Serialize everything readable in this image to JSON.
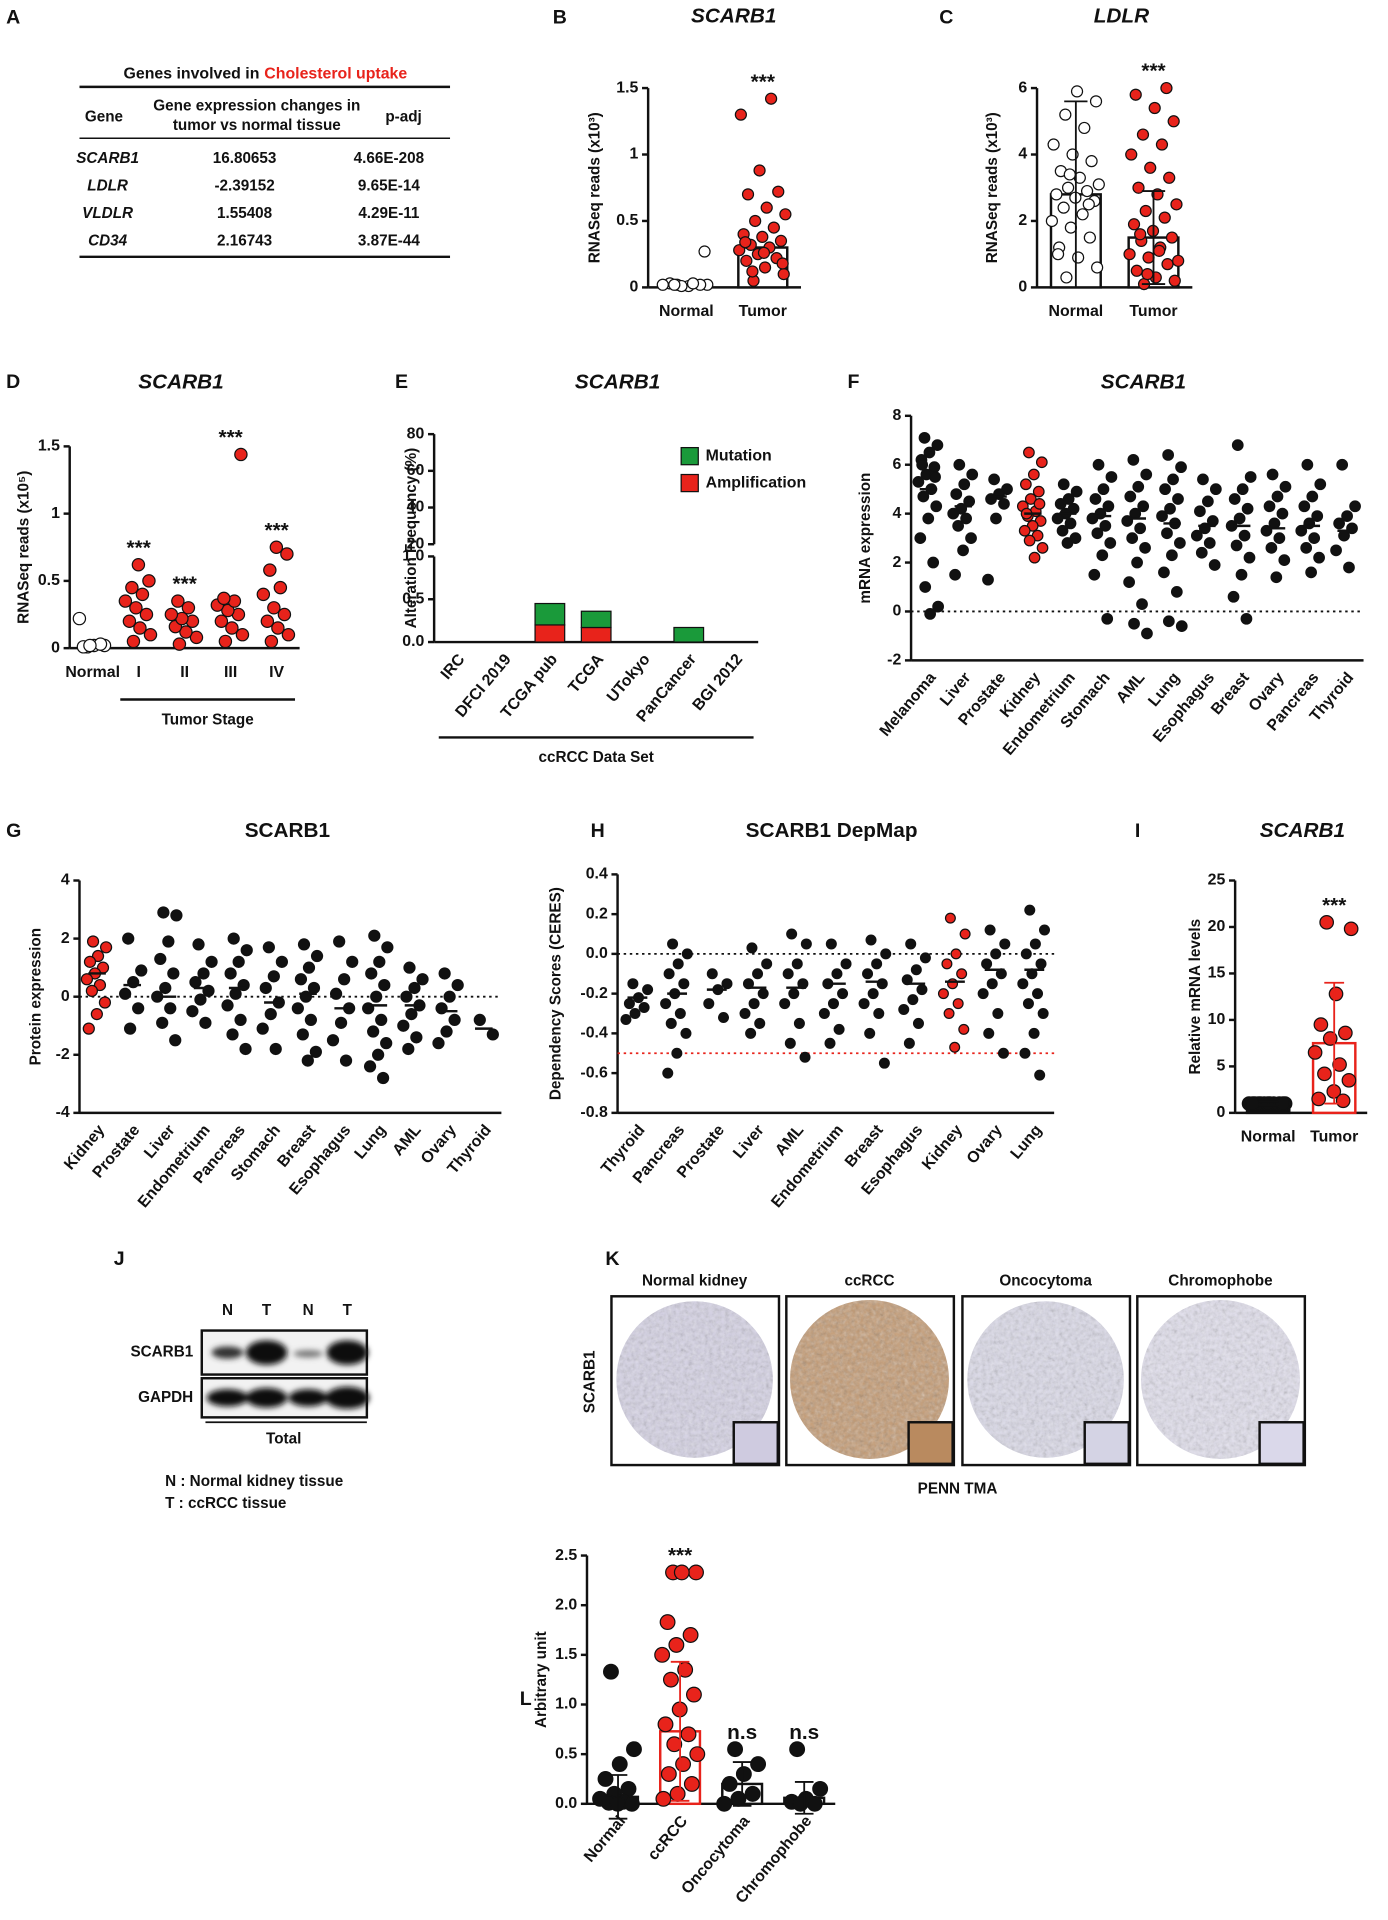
{
  "table": {
    "panel": "A",
    "title": "Genes involved in",
    "title_highlight": "Cholesterol uptake",
    "highlight_color": "#e8231b",
    "columns": [
      "Gene",
      [
        "Gene expression changes in",
        "tumor vs normal tissue"
      ],
      "p-adj"
    ],
    "rows": [
      [
        "SCARB1",
        "16.80653",
        "4.66E-208"
      ],
      [
        "LDLR",
        "-2.39152",
        "9.65E-14"
      ],
      [
        "VLDLR",
        "1.55408",
        "4.29E-11"
      ],
      [
        "CD34",
        "2.16743",
        "3.87E-44"
      ]
    ],
    "row_colors": [
      "#e8231b",
      "#111111",
      "#111111",
      "#111111"
    ]
  },
  "chart_data": [
    {
      "type": "dotplot",
      "panel": "B",
      "title": "SCARB1",
      "title_italic": true,
      "ylabel": "RNASeq reads (x10³)",
      "ylim": [
        0,
        1.5
      ],
      "yticks": [
        0,
        0.5,
        1,
        1.5
      ],
      "categories": [
        "Normal",
        "Tumor"
      ],
      "point_colors": [
        "#ffffff",
        "#e8231b"
      ],
      "bar": true,
      "bar_colors": [
        "#ffffff",
        "#ffffff"
      ],
      "bar_edge": [
        "#111111",
        "#111111"
      ],
      "means": [
        0.02,
        0.3
      ],
      "points": [
        [
          0.02,
          0.02,
          0.01,
          0.03,
          0.02,
          0.01,
          0.02,
          0.03,
          0.02,
          0.27
        ],
        [
          0.05,
          0.1,
          0.15,
          0.2,
          0.22,
          0.25,
          0.28,
          0.3,
          0.32,
          0.35,
          0.38,
          0.4,
          0.45,
          0.5,
          0.55,
          0.6,
          0.7,
          0.72,
          0.88,
          1.3,
          1.42,
          0.12,
          0.18,
          0.26,
          0.34
        ]
      ],
      "stars": [
        null,
        "***"
      ]
    },
    {
      "type": "dotplot",
      "panel": "C",
      "title": "LDLR",
      "title_italic": true,
      "ylabel": "RNASeq reads (x10³)",
      "ylim": [
        0,
        6
      ],
      "yticks": [
        0,
        2,
        4,
        6
      ],
      "categories": [
        "Normal",
        "Tumor"
      ],
      "point_colors": [
        "#ffffff",
        "#e8231b"
      ],
      "bar": true,
      "bar_colors": [
        "#ffffff",
        "#ffffff"
      ],
      "bar_edge": [
        "#111111",
        "#111111"
      ],
      "means": [
        2.8,
        1.5
      ],
      "sd": [
        2.8,
        1.4
      ],
      "points": [
        [
          0.3,
          0.6,
          0.9,
          1.2,
          1.5,
          1.8,
          2.0,
          2.2,
          2.4,
          2.6,
          2.7,
          2.8,
          2.9,
          3.0,
          3.1,
          3.3,
          3.5,
          3.8,
          4.0,
          4.3,
          4.8,
          5.2,
          5.6,
          5.9,
          1.0,
          2.5,
          3.4
        ],
        [
          0.1,
          0.2,
          0.3,
          0.5,
          0.7,
          0.9,
          1.0,
          1.2,
          1.4,
          1.5,
          1.7,
          1.9,
          2.1,
          2.3,
          2.5,
          2.8,
          3.0,
          3.3,
          3.6,
          4.0,
          4.3,
          4.6,
          5.0,
          5.4,
          5.8,
          6.0,
          0.4,
          0.8,
          1.1,
          1.6
        ]
      ],
      "stars": [
        null,
        "***"
      ]
    },
    {
      "type": "dotplot",
      "panel": "D",
      "title": "SCARB1",
      "title_italic": true,
      "ylabel": "RNASeq reads (x10⁵)",
      "xlabel": "Tumor Stage",
      "ylim": [
        0,
        1.5
      ],
      "yticks": [
        0,
        0.5,
        1,
        1.5
      ],
      "categories": [
        "Normal",
        "I",
        "II",
        "III",
        "IV"
      ],
      "point_colors": [
        "#ffffff",
        "#e8231b",
        "#e8231b",
        "#e8231b",
        "#e8231b"
      ],
      "points": [
        [
          0.01,
          0.02,
          0.02,
          0.01,
          0.03,
          0.02,
          0.22
        ],
        [
          0.05,
          0.1,
          0.15,
          0.2,
          0.25,
          0.3,
          0.35,
          0.4,
          0.45,
          0.5,
          0.62
        ],
        [
          0.03,
          0.08,
          0.12,
          0.16,
          0.2,
          0.22,
          0.25,
          0.3,
          0.35
        ],
        [
          0.05,
          0.1,
          0.15,
          0.2,
          0.25,
          0.28,
          0.32,
          0.35,
          0.37,
          1.44
        ],
        [
          0.05,
          0.1,
          0.15,
          0.2,
          0.25,
          0.3,
          0.4,
          0.45,
          0.58,
          0.7,
          0.75
        ]
      ],
      "stars": [
        null,
        "***",
        "***",
        "***",
        "***"
      ]
    },
    {
      "type": "broken_bar",
      "panel": "E",
      "title": "SCARB1",
      "title_italic": true,
      "ylabel": "Alteration Frequency (%)",
      "xlabel": "ccRCC Data Set",
      "ylim": [
        0,
        1
      ],
      "yticks": [
        {
          "value": 0,
          "label": "0.0"
        },
        0.5,
        {
          "value": 1,
          "label": "1.0"
        }
      ],
      "ylim_upper": [
        20,
        80
      ],
      "yticks_upper": [
        20,
        40,
        60,
        80
      ],
      "categories": [
        "IRC",
        "DFCI 2019",
        "TCGA pub",
        "TCGA",
        "UTokyo",
        "PanCancer",
        "BGI 2012"
      ],
      "series": [
        {
          "name": "Mutation",
          "color": "#1a9a3a",
          "values": [
            0,
            0,
            0.25,
            0.19,
            0,
            0.17,
            0
          ]
        },
        {
          "name": "Amplification",
          "color": "#e8231b",
          "values": [
            0,
            0,
            0.2,
            0.17,
            0,
            0,
            0
          ]
        }
      ]
    },
    {
      "type": "dotplot",
      "panel": "F",
      "title": "SCARB1",
      "title_italic": true,
      "ylabel": "mRNA expression",
      "ylim": [
        -2,
        8
      ],
      "yticks": [
        -2,
        0,
        2,
        4,
        6,
        8
      ],
      "reflines": [
        {
          "value": 0,
          "color": "#111111"
        }
      ],
      "label_colors": {
        "Kidney": "#e8231b"
      },
      "categories": [
        "Melanoma",
        "Liver",
        "Prostate",
        "Kidney",
        "Endometrium",
        "Stomach",
        "AML",
        "Lung",
        "Esophagus",
        "Breast",
        "Ovary",
        "Pancreas",
        "Thyroid"
      ],
      "point_colors": [
        "#111111",
        "#111111",
        "#111111",
        "#e8231b",
        "#111111",
        "#111111",
        "#111111",
        "#111111",
        "#111111",
        "#111111",
        "#111111",
        "#111111",
        "#111111"
      ],
      "means": [
        5.0,
        4.3,
        4.7,
        4.0,
        4.0,
        3.9,
        3.8,
        3.6,
        3.5,
        3.5,
        3.4,
        3.5,
        3.3
      ],
      "points": [
        [
          7.1,
          6.8,
          6.5,
          6.2,
          5.9,
          5.6,
          5.3,
          5.0,
          4.7,
          4.3,
          3.8,
          3.0,
          2.0,
          1.0,
          0.2,
          -0.1,
          6.0,
          5.5
        ],
        [
          6.0,
          5.6,
          5.2,
          4.8,
          4.5,
          4.2,
          4.0,
          3.8,
          3.5,
          3.0,
          2.5,
          1.5
        ],
        [
          5.4,
          5.0,
          4.8,
          4.6,
          4.4,
          3.8,
          1.3
        ],
        [
          6.5,
          6.1,
          5.6,
          5.2,
          4.9,
          4.6,
          4.3,
          4.1,
          3.9,
          3.7,
          3.5,
          3.3,
          3.1,
          2.9,
          2.6,
          2.2,
          4.0,
          4.4
        ],
        [
          5.2,
          4.9,
          4.6,
          4.4,
          4.2,
          4.0,
          3.8,
          3.6,
          3.3,
          3.0,
          2.8
        ],
        [
          6.0,
          5.5,
          5.0,
          4.6,
          4.3,
          4.0,
          3.8,
          3.5,
          3.2,
          2.8,
          2.3,
          1.5,
          -0.3
        ],
        [
          6.2,
          5.6,
          5.1,
          4.7,
          4.3,
          4.0,
          3.7,
          3.4,
          3.0,
          2.6,
          2.0,
          1.2,
          0.3,
          -0.5,
          -0.9
        ],
        [
          6.4,
          5.9,
          5.4,
          5.0,
          4.6,
          4.2,
          3.9,
          3.6,
          3.2,
          2.8,
          2.3,
          1.6,
          0.8,
          -0.4,
          -0.6
        ],
        [
          5.4,
          5.0,
          4.5,
          4.1,
          3.7,
          3.4,
          3.1,
          2.8,
          2.4,
          1.9
        ],
        [
          6.8,
          5.5,
          5.0,
          4.6,
          4.2,
          3.8,
          3.5,
          3.1,
          2.7,
          2.2,
          1.5,
          0.6,
          -0.3
        ],
        [
          5.6,
          5.1,
          4.7,
          4.3,
          4.0,
          3.6,
          3.3,
          3.0,
          2.6,
          2.1,
          1.4
        ],
        [
          6.0,
          5.2,
          4.7,
          4.3,
          3.9,
          3.6,
          3.3,
          3.0,
          2.6,
          2.2,
          1.6
        ],
        [
          6.0,
          4.3,
          3.9,
          3.6,
          3.4,
          3.1,
          2.5,
          1.8
        ]
      ]
    },
    {
      "type": "dotplot",
      "panel": "G",
      "title": "SCARB1",
      "title_italic": false,
      "ylabel": "Protein expression",
      "ylim": [
        -4,
        4
      ],
      "yticks": [
        -4,
        -2,
        0,
        2,
        4
      ],
      "reflines": [
        {
          "value": 0,
          "color": "#111111"
        }
      ],
      "label_colors": {
        "Kidney": "#e8231b"
      },
      "categories": [
        "Kidney",
        "Prostate",
        "Liver",
        "Endometrium",
        "Pancreas",
        "Stomach",
        "Breast",
        "Esophagus",
        "Lung",
        "AML",
        "Ovary",
        "Thyroid"
      ],
      "point_colors": [
        "#e8231b",
        "#111111",
        "#111111",
        "#111111",
        "#111111",
        "#111111",
        "#111111",
        "#111111",
        "#111111",
        "#111111",
        "#111111",
        "#111111"
      ],
      "means": [
        0.8,
        0.4,
        0,
        0.3,
        0.3,
        -0.2,
        0.1,
        -0.4,
        -0.3,
        -0.3,
        -0.5,
        -1.1
      ],
      "points": [
        [
          1.9,
          1.7,
          1.4,
          1.2,
          1.0,
          0.8,
          0.6,
          0.4,
          0.2,
          -0.2,
          -0.6,
          -1.1
        ],
        [
          2.0,
          0.9,
          0.5,
          0.1,
          -0.4,
          -1.1
        ],
        [
          2.9,
          2.8,
          1.9,
          1.3,
          0.8,
          0.3,
          0,
          -0.4,
          -0.9,
          -1.5
        ],
        [
          1.8,
          1.2,
          0.8,
          0.5,
          0.2,
          -0.1,
          -0.5,
          -0.9
        ],
        [
          2.0,
          1.6,
          1.2,
          0.8,
          0.4,
          0.1,
          -0.3,
          -0.8,
          -1.3,
          -1.8
        ],
        [
          1.7,
          1.2,
          0.7,
          0.3,
          -0.2,
          -0.6,
          -1.1,
          -1.8
        ],
        [
          1.8,
          1.4,
          1.0,
          0.6,
          0.3,
          0,
          -0.4,
          -0.8,
          -1.3,
          -1.9,
          -2.2
        ],
        [
          1.9,
          1.2,
          0.6,
          0.1,
          -0.4,
          -0.9,
          -1.5,
          -2.2
        ],
        [
          2.1,
          1.7,
          1.2,
          0.8,
          0.4,
          0,
          -0.4,
          -0.8,
          -1.2,
          -1.6,
          -2.0,
          -2.4,
          -2.8
        ],
        [
          1.0,
          0.6,
          0.3,
          0,
          -0.3,
          -0.6,
          -1.0,
          -1.4,
          -1.8
        ],
        [
          0.8,
          0.4,
          0,
          -0.4,
          -0.8,
          -1.2,
          -1.6
        ],
        [
          -0.8,
          -1.3
        ]
      ]
    },
    {
      "type": "dotplot",
      "panel": "H",
      "title": "SCARB1 DepMap",
      "title_italic": false,
      "ylabel": "Dependency Scores (CERES)",
      "ylim": [
        -0.8,
        0.4
      ],
      "yticks": [
        -0.8,
        -0.6,
        -0.4,
        -0.2,
        {
          "value": 0,
          "label": "0.0"
        },
        0.2,
        0.4
      ],
      "reflines": [
        {
          "value": 0,
          "color": "#111111"
        },
        {
          "value": -0.5,
          "color": "#e8231b"
        }
      ],
      "label_colors": {
        "Kidney": "#e8231b"
      },
      "categories": [
        "Thyroid",
        "Pancreas",
        "Prostate",
        "Liver",
        "AML",
        "Endometrium",
        "Breast",
        "Esophagus",
        "Kidney",
        "Ovary",
        "Lung"
      ],
      "point_colors": [
        "#111111",
        "#111111",
        "#111111",
        "#111111",
        "#111111",
        "#111111",
        "#111111",
        "#111111",
        "#e8231b",
        "#111111",
        "#111111"
      ],
      "means": [
        -0.22,
        -0.2,
        -0.18,
        -0.17,
        -0.17,
        -0.15,
        -0.14,
        -0.15,
        -0.14,
        -0.08,
        -0.08
      ],
      "points": [
        [
          -0.15,
          -0.18,
          -0.22,
          -0.25,
          -0.27,
          -0.3,
          -0.33
        ],
        [
          0.05,
          0.0,
          -0.05,
          -0.1,
          -0.15,
          -0.2,
          -0.25,
          -0.3,
          -0.35,
          -0.4,
          -0.5,
          -0.6
        ],
        [
          -0.1,
          -0.15,
          -0.18,
          -0.25,
          -0.32
        ],
        [
          0.03,
          -0.05,
          -0.1,
          -0.15,
          -0.2,
          -0.25,
          -0.3,
          -0.35,
          -0.4
        ],
        [
          0.1,
          0.05,
          -0.05,
          -0.1,
          -0.15,
          -0.2,
          -0.25,
          -0.35,
          -0.45,
          -0.52
        ],
        [
          0.05,
          -0.05,
          -0.1,
          -0.15,
          -0.2,
          -0.25,
          -0.3,
          -0.38,
          -0.45
        ],
        [
          0.07,
          0.0,
          -0.05,
          -0.1,
          -0.15,
          -0.2,
          -0.25,
          -0.3,
          -0.4,
          -0.55
        ],
        [
          0.05,
          -0.02,
          -0.08,
          -0.13,
          -0.18,
          -0.23,
          -0.28,
          -0.35,
          -0.45
        ],
        [
          0.18,
          0.1,
          0.0,
          -0.05,
          -0.1,
          -0.15,
          -0.2,
          -0.25,
          -0.3,
          -0.38,
          -0.47
        ],
        [
          0.12,
          0.05,
          0.0,
          -0.05,
          -0.1,
          -0.15,
          -0.2,
          -0.3,
          -0.4,
          -0.5
        ],
        [
          0.22,
          0.12,
          0.05,
          0,
          -0.05,
          -0.1,
          -0.15,
          -0.2,
          -0.25,
          -0.3,
          -0.4,
          -0.5,
          -0.61
        ]
      ]
    },
    {
      "type": "dotplot",
      "panel": "I",
      "title": "SCARB1",
      "title_italic": true,
      "ylabel": "Relative mRNA levels",
      "ylim": [
        0,
        25
      ],
      "yticks": [
        0,
        5,
        10,
        15,
        20,
        25
      ],
      "categories": [
        "Normal",
        "Tumor"
      ],
      "point_colors": [
        "#111111",
        "#e8231b"
      ],
      "bar": true,
      "bar_colors": [
        "#111111",
        "#ffffff"
      ],
      "bar_edge": [
        "#111111",
        "#e8231b"
      ],
      "means": [
        1,
        7.5
      ],
      "sd": [
        0.2,
        6.5
      ],
      "points": [
        [
          1,
          1,
          1,
          1,
          1,
          1,
          1,
          1,
          1,
          1,
          1,
          1
        ],
        [
          20.5,
          19.8,
          12.8,
          9.5,
          8.6,
          8.0,
          6.5,
          5.2,
          4.2,
          3.5,
          2.3,
          1.5,
          1.3
        ]
      ],
      "stars": [
        null,
        "***"
      ]
    },
    {
      "type": "dotplot",
      "panel": "L",
      "ylabel": "Arbitrary unit",
      "ylim": [
        0,
        2.5
      ],
      "yticks": [
        {
          "value": 0,
          "label": "0.0"
        },
        0.5,
        {
          "value": 1,
          "label": "1.0"
        },
        1.5,
        {
          "value": 2,
          "label": "2.0"
        },
        2.5
      ],
      "categories": [
        "Normal",
        "ccRCC",
        "Oncocytoma",
        "Chromophobe"
      ],
      "point_colors": [
        "#111111",
        "#e8231b",
        "#111111",
        "#111111"
      ],
      "bar": true,
      "bar_colors": [
        "#ffffff",
        "#ffffff",
        "#ffffff",
        "#ffffff"
      ],
      "bar_edge": [
        "#111111",
        "#e8231b",
        "#111111",
        "#111111"
      ],
      "means": [
        0.07,
        0.73,
        0.2,
        0.06
      ],
      "sd": [
        0.22,
        0.7,
        0.22,
        0.16
      ],
      "points": [
        [
          1.33,
          0.55,
          0.4,
          0.25,
          0.15,
          0.1,
          0.05,
          0.02,
          0.01,
          0.0,
          0.0
        ],
        [
          2.33,
          2.33,
          2.33,
          1.83,
          1.7,
          1.6,
          1.5,
          1.35,
          1.25,
          1.1,
          0.95,
          0.8,
          0.7,
          0.6,
          0.5,
          0.4,
          0.3,
          0.2,
          0.1,
          0.05
        ],
        [
          0.55,
          0.4,
          0.3,
          0.2,
          0.1,
          0.05,
          0.0
        ],
        [
          0.55,
          0.15,
          0.05,
          0.02,
          0.0,
          0.0
        ]
      ],
      "stars": [
        null,
        "***",
        "n.s",
        "n.s"
      ]
    }
  ],
  "blot": {
    "panel": "J",
    "lanes": [
      "N",
      "T",
      "N",
      "T"
    ],
    "rows": [
      "SCARB1",
      "GAPDH"
    ],
    "caption": "Total",
    "legend": [
      "N : Normal kidney tissue",
      "T : ccRCC tissue"
    ]
  },
  "ihc": {
    "panel": "K",
    "titles": [
      "Normal kidney",
      "ccRCC",
      "Oncocytoma",
      "Chromophobe"
    ],
    "ylabel": "SCARB1",
    "xlabel": "PENN TMA"
  }
}
